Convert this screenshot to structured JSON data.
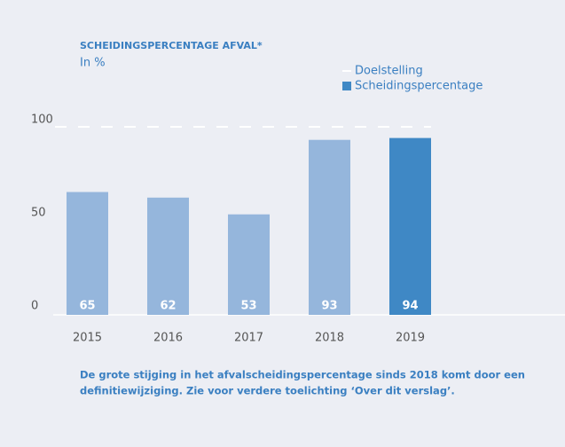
{
  "chart_data": {
    "type": "bar",
    "title": "SCHEIDINGSPERCENTAGE AFVAL*",
    "subtitle": "In %",
    "categories": [
      "2015",
      "2016",
      "2017",
      "2018",
      "2019"
    ],
    "series": [
      {
        "name": "Scheidingspercentage",
        "color": "#3f88c5",
        "values": [
          65,
          62,
          53,
          93,
          94
        ],
        "colors": [
          "#95b6dc",
          "#95b6dc",
          "#95b6dc",
          "#95b6dc",
          "#3f88c5"
        ]
      }
    ],
    "target": {
      "name": "Doelstelling",
      "value": 100,
      "color": "#ffffff"
    },
    "ylim": [
      0,
      100
    ],
    "yticks": [
      0,
      50,
      100
    ],
    "note": [
      "De grote stijging in het afvalscheidingspercentage sinds 2018 komt door een",
      "definitiewijziging. Zie voor verdere toelichting ‘Over dit verslag’."
    ]
  }
}
